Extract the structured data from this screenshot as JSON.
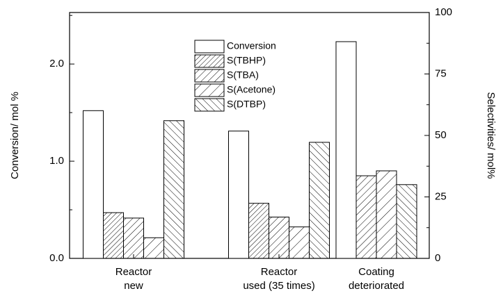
{
  "chart_data": {
    "type": "bar",
    "ylabel": "Conversion/ mol %",
    "y2label": "Selectivities/ mol%",
    "categories": [
      [
        "Reactor",
        "new"
      ],
      [
        "Reactor",
        "used (35 times)"
      ],
      [
        "Coating",
        "deteriorated"
      ]
    ],
    "series": [
      {
        "name": "Conversion",
        "pattern": "none",
        "values": [
          1.52,
          1.31,
          2.23
        ]
      },
      {
        "name": "S(TBHP)",
        "pattern": "dense",
        "axis": "y2",
        "values": [
          18.6,
          22.4,
          null
        ]
      },
      {
        "name": "S(TBA)",
        "pattern": "medium",
        "axis": "y2",
        "values": [
          16.4,
          16.8,
          33.6
        ]
      },
      {
        "name": "S(Acetone)",
        "pattern": "sparse",
        "axis": "y2",
        "values": [
          8.4,
          12.8,
          35.6
        ]
      },
      {
        "name": "S(DTBP)",
        "pattern": "back",
        "axis": "y2",
        "values": [
          56,
          47.2,
          30
        ]
      }
    ],
    "ylim": [
      0,
      2.53
    ],
    "yticks": [
      {
        "value": 0,
        "label": "0.0"
      },
      {
        "value": 1,
        "label": "1.0"
      },
      {
        "value": 2,
        "label": "2.0"
      }
    ],
    "y2lim": [
      0,
      100
    ],
    "y2ticks": [
      0,
      25,
      50,
      75,
      100
    ]
  }
}
